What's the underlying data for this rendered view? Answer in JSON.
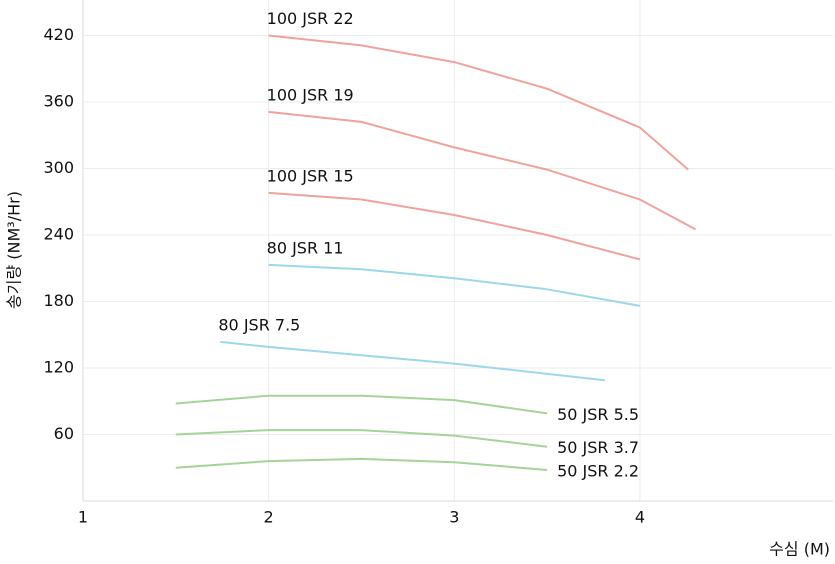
{
  "chart_data": {
    "type": "line",
    "x_label": "수심 (M)",
    "y_label": "송기량 (NM³/Hr)",
    "xlim": [
      1,
      5.04
    ],
    "xticks": [
      1,
      2,
      3,
      4
    ],
    "ylim": [
      0,
      452
    ],
    "yticks": [
      60,
      120,
      180,
      240,
      300,
      360,
      420
    ],
    "grid": true,
    "series": [
      {
        "name": "100 JSR 22",
        "color": "#f0a39a",
        "x": [
          2,
          2.5,
          3,
          3.5,
          4,
          4.26
        ],
        "values": [
          420,
          411,
          396,
          372,
          337,
          299
        ]
      },
      {
        "name": "100 JSR 19",
        "color": "#f0a39a",
        "x": [
          2,
          2.5,
          3,
          3.5,
          4,
          4.3
        ],
        "values": [
          351,
          342,
          319,
          299,
          272,
          245
        ]
      },
      {
        "name": "100 JSR 15",
        "color": "#f0a39a",
        "x": [
          2,
          2.5,
          3,
          3.5,
          4
        ],
        "values": [
          278,
          272,
          258,
          240,
          218
        ]
      },
      {
        "name": "80 JSR 11",
        "color": "#9dd8ea",
        "x": [
          2,
          2.5,
          3,
          3.5,
          4
        ],
        "values": [
          213,
          209,
          201,
          191,
          176
        ]
      },
      {
        "name": "80 JSR 7.5",
        "color": "#9dd8ea",
        "x": [
          1.74,
          2,
          3,
          3.81
        ],
        "values": [
          143.5,
          139,
          124,
          109
        ]
      },
      {
        "name": "50 JSR 5.5",
        "color": "#a5d49b",
        "x": [
          1.5,
          2,
          2.5,
          3,
          3.5
        ],
        "values": [
          88,
          95,
          95,
          91,
          79
        ]
      },
      {
        "name": "50 JSR 3.7",
        "color": "#a5d49b",
        "x": [
          1.5,
          2,
          2.5,
          3,
          3.5
        ],
        "values": [
          60,
          64,
          64,
          59,
          49
        ]
      },
      {
        "name": "50 JSR 2.2",
        "color": "#a5d49b",
        "x": [
          1.5,
          2,
          2.5,
          3,
          3.5
        ],
        "values": [
          30,
          36,
          38,
          35,
          28
        ]
      }
    ]
  }
}
